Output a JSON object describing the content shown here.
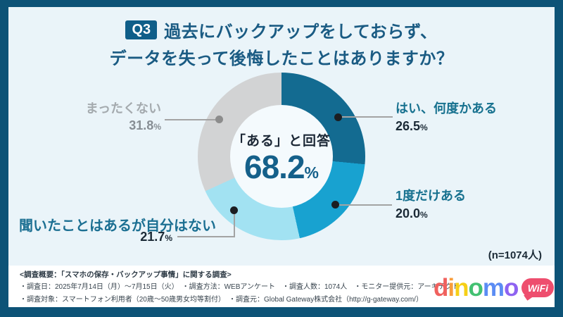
{
  "title": {
    "badge": "Q3",
    "line1": "過去にバックアップをしておらず、",
    "line2": "データを失って後悔したことはありますか？"
  },
  "chart_data": {
    "type": "pie",
    "donut": true,
    "title": "Q3 過去にバックアップをしておらず、データを失って後悔したことはありますか？",
    "start_angle_deg": 0,
    "direction": "clockwise",
    "unit": "%",
    "segments": [
      {
        "label": "はい、何度かある",
        "value": 26.5,
        "display": "26.5",
        "color": "#136b91"
      },
      {
        "label": "1度だけある",
        "value": 20.0,
        "display": "20.0",
        "color": "#18a2d0"
      },
      {
        "label": "聞いたことはあるが自分はない",
        "value": 21.7,
        "display": "21.7",
        "color": "#a2e2f2"
      },
      {
        "label": "まったくない",
        "value": 31.8,
        "display": "31.8",
        "color": "#d2d3d4"
      }
    ],
    "center": {
      "label": "「ある」と回答",
      "value": "68.2",
      "unit": "%"
    },
    "sample_size": "(n=1074人)"
  },
  "footer": {
    "line1": "<調査概要：「スマホの保存・バックアップ事情」に関する調査>",
    "line2": "・調査日：2025年7月14日（月）〜7月15日（火）　・調査方法：WEBアンケート　・調査人数：1074人　・モニター提供元：アーキテクト",
    "line3": "・調査対象：スマートフォン利用者（20歳〜50歳男女均等割付）　・調査元：Global Gateway株式会社（http://g-gateway.com/）"
  },
  "logo": {
    "letters": [
      {
        "ch": "d",
        "color": "#f0615e"
      },
      {
        "ch": "i",
        "color": "#f89d3b"
      },
      {
        "ch": "n",
        "color": "#f6cf17"
      },
      {
        "ch": "o",
        "color": "#43c172"
      },
      {
        "ch": "m",
        "color": "#5b8cf4"
      },
      {
        "ch": "o",
        "color": "#8e63f1"
      }
    ],
    "badge": "WiFi",
    "badge_color": "#ee4e6e"
  }
}
